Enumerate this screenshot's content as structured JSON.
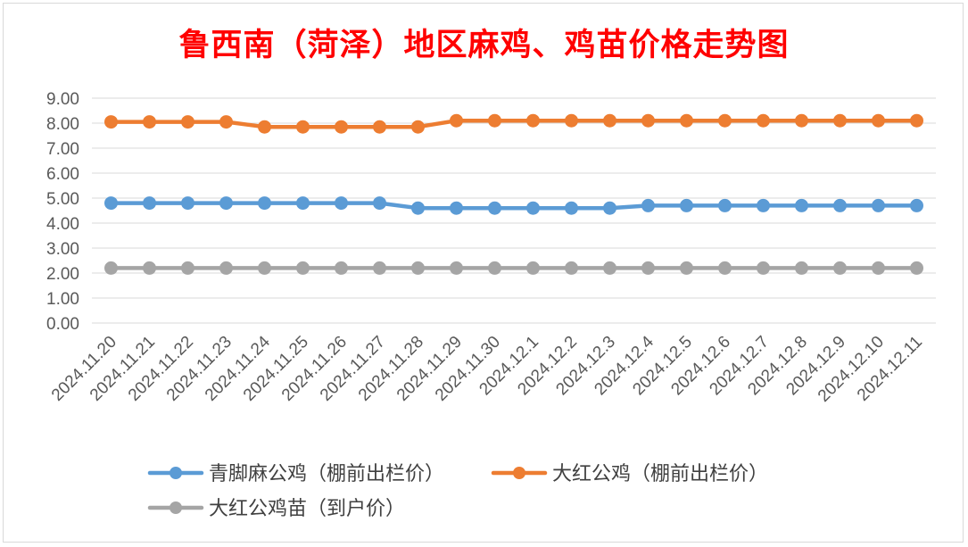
{
  "chart_data": {
    "type": "line",
    "title": "鲁西南（菏泽）地区麻鸡、鸡苗价格走势图",
    "xlabel": "",
    "ylabel": "",
    "ylim": [
      0,
      9
    ],
    "y_ticks": [
      "0.00",
      "1.00",
      "2.00",
      "3.00",
      "4.00",
      "5.00",
      "6.00",
      "7.00",
      "8.00",
      "9.00"
    ],
    "grid": "horizontal",
    "legend_position": "bottom",
    "categories": [
      "2024.11.20",
      "2024.11.21",
      "2024.11.22",
      "2024.11.23",
      "2024.11.24",
      "2024.11.25",
      "2024.11.26",
      "2024.11.27",
      "2024.11.28",
      "2024.11.29",
      "2024.11.30",
      "2024.12.1",
      "2024.12.2",
      "2024.12.3",
      "2024.12.4",
      "2024.12.5",
      "2024.12.6",
      "2024.12.7",
      "2024.12.8",
      "2024.12.9",
      "2024.12.10",
      "2024.12.11"
    ],
    "series": [
      {
        "name": "青脚麻公鸡（棚前出栏价）",
        "color": "#5b9bd5",
        "values": [
          4.8,
          4.8,
          4.8,
          4.8,
          4.8,
          4.8,
          4.8,
          4.8,
          4.6,
          4.6,
          4.6,
          4.6,
          4.6,
          4.6,
          4.7,
          4.7,
          4.7,
          4.7,
          4.7,
          4.7,
          4.7,
          4.7
        ]
      },
      {
        "name": "大红公鸡（棚前出栏价）",
        "color": "#ed7d31",
        "values": [
          8.05,
          8.05,
          8.05,
          8.05,
          7.85,
          7.85,
          7.85,
          7.85,
          7.85,
          8.1,
          8.1,
          8.1,
          8.1,
          8.1,
          8.1,
          8.1,
          8.1,
          8.1,
          8.1,
          8.1,
          8.1,
          8.1
        ]
      },
      {
        "name": "大红公鸡苗（到户价）",
        "color": "#a5a5a5",
        "values": [
          2.2,
          2.2,
          2.2,
          2.2,
          2.2,
          2.2,
          2.2,
          2.2,
          2.2,
          2.2,
          2.2,
          2.2,
          2.2,
          2.2,
          2.2,
          2.2,
          2.2,
          2.2,
          2.2,
          2.2,
          2.2,
          2.2
        ]
      }
    ]
  },
  "colors": {
    "title": "#ff0000",
    "grid": "#d9d9d9",
    "tick_text": "#595959"
  }
}
